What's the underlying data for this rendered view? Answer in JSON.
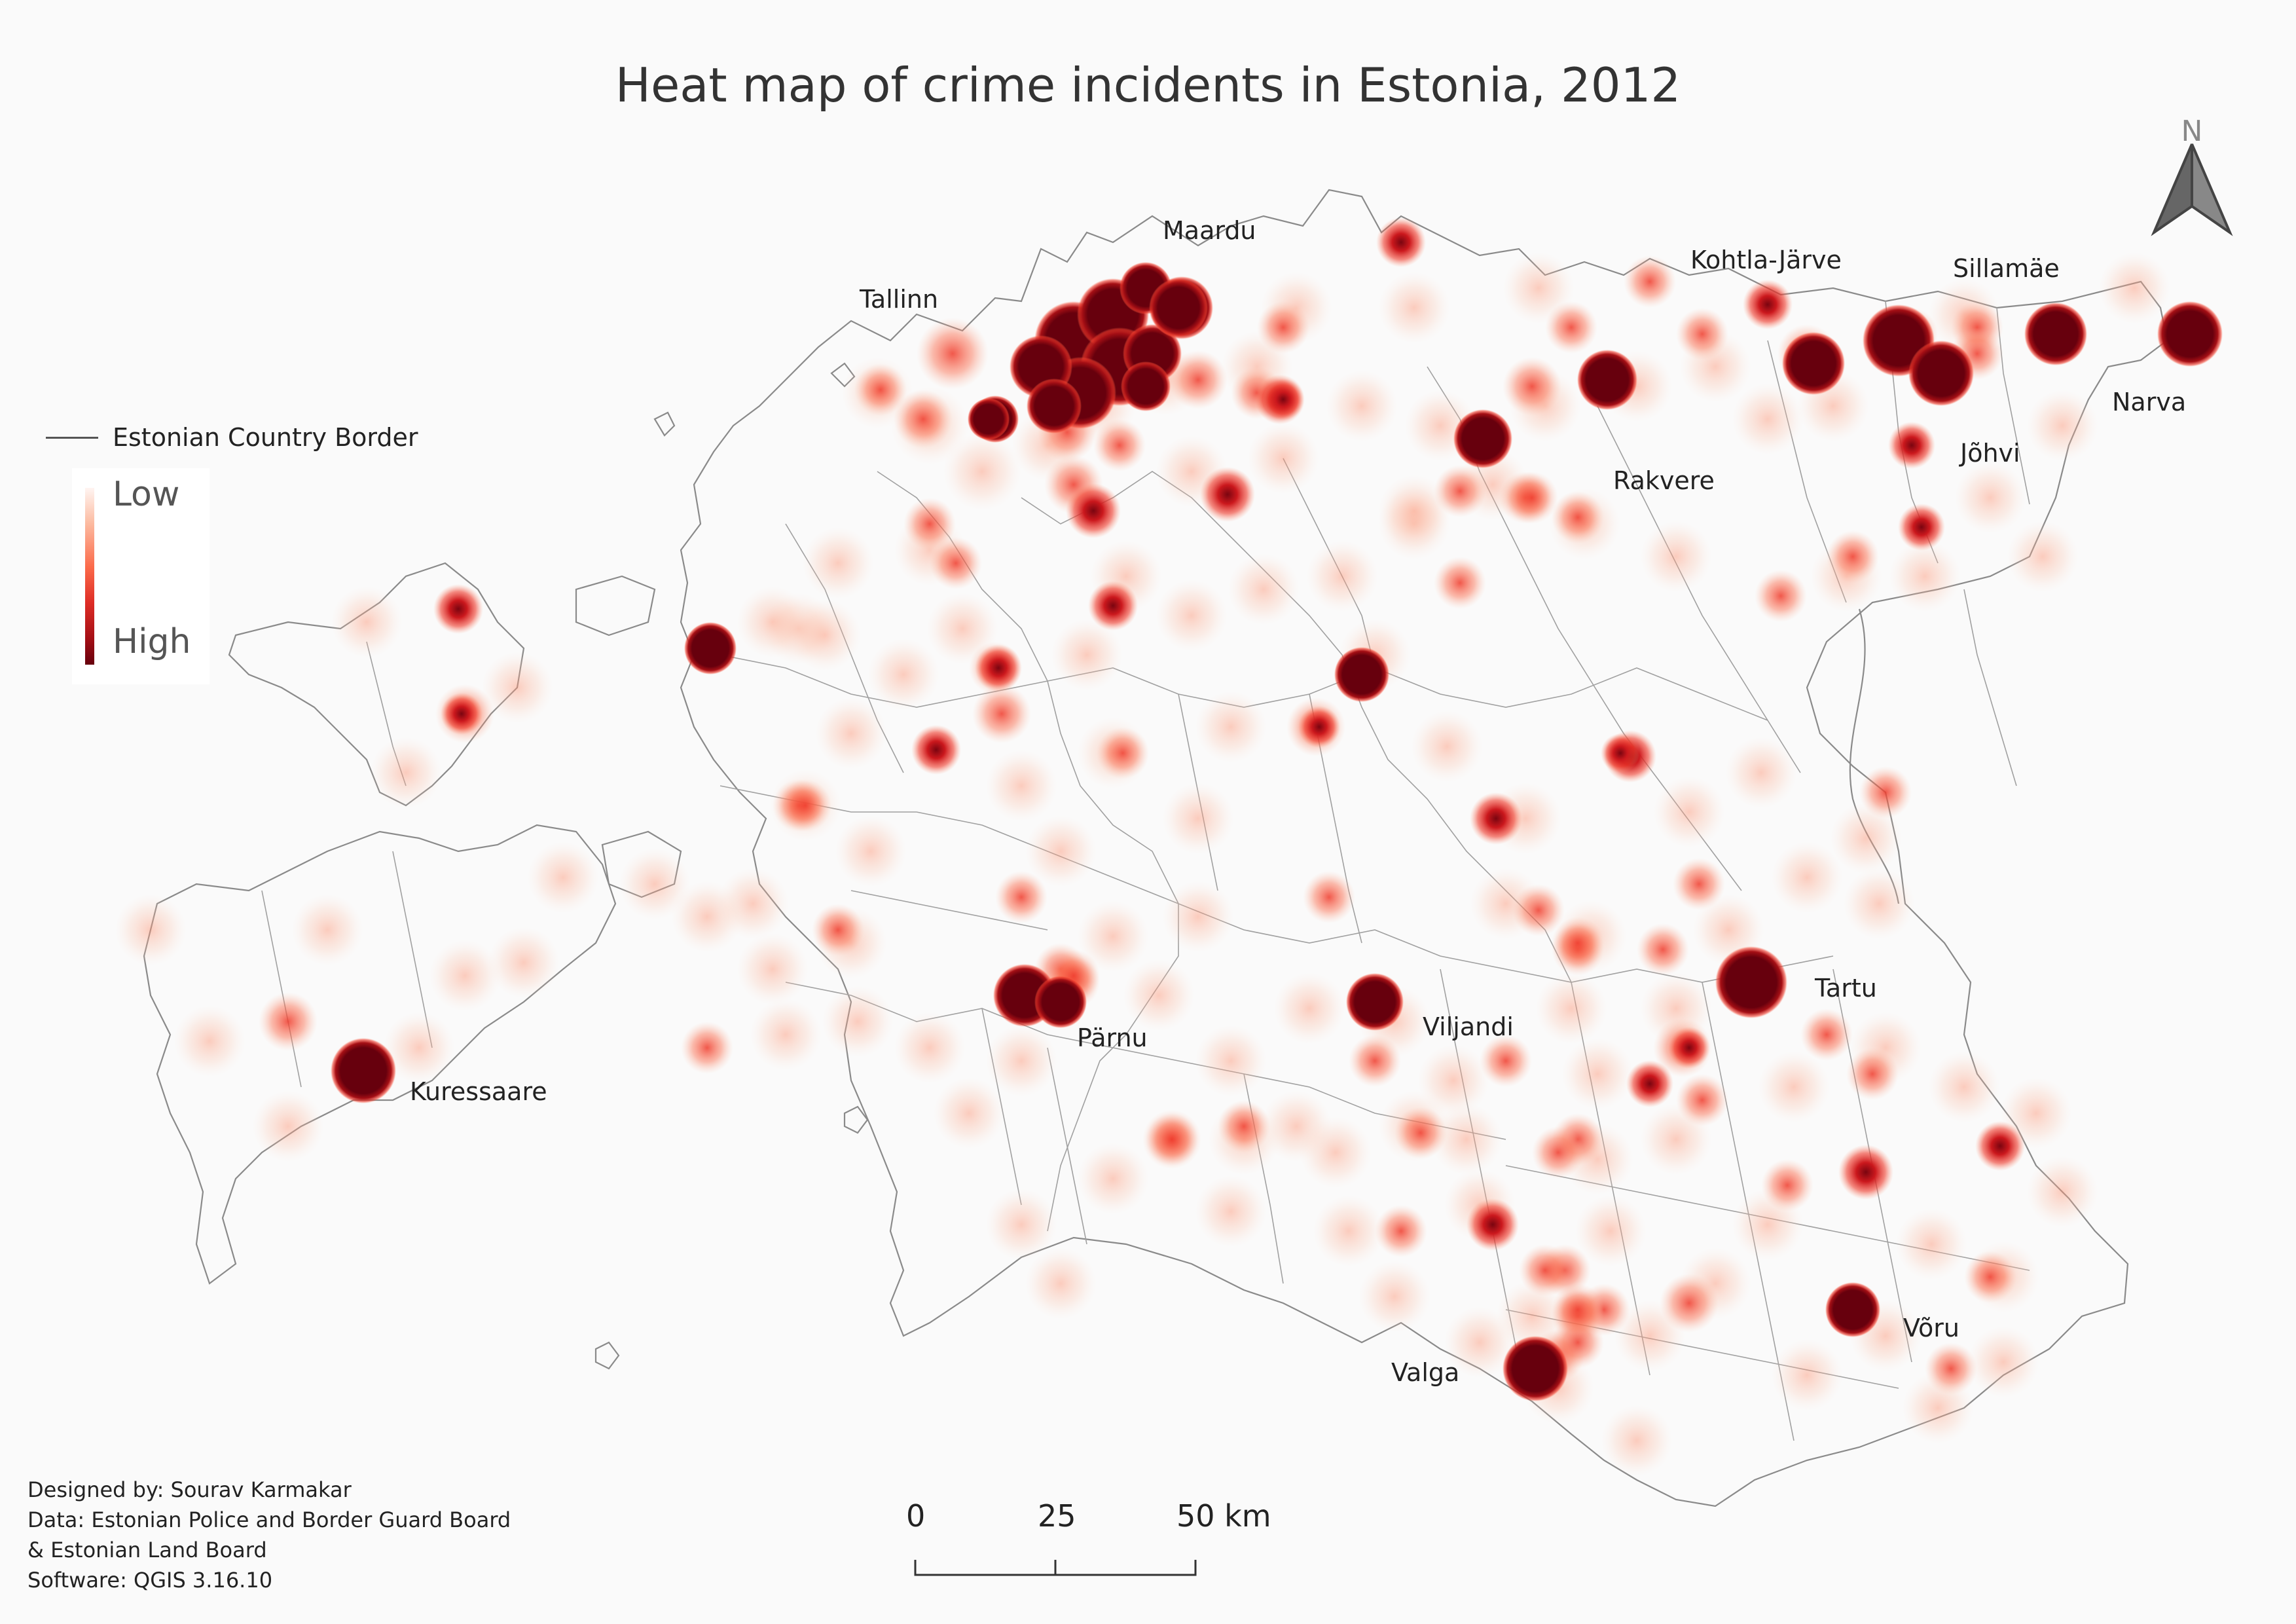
{
  "title": "Heat map of crime incidents in Estonia, 2012",
  "legend": {
    "border_label": "Estonian Country Border",
    "low_label": "Low",
    "high_label": "High",
    "ramp_colors": [
      "#fff5f2",
      "#fcbba1",
      "#fb6a4a",
      "#de2d26",
      "#a50f15",
      "#67000d"
    ]
  },
  "cities": {
    "tallinn": "Tallinn",
    "maardu": "Maardu",
    "kohtla_jarve": "Kohtla-Järve",
    "sillamae": "Sillamäe",
    "narva": "Narva",
    "johvi": "Jõhvi",
    "rakvere": "Rakvere",
    "tartu": "Tartu",
    "viljandi": "Viljandi",
    "parnu": "Pärnu",
    "kuressaare": "Kuressaare",
    "valga": "Valga",
    "voru": "Võru"
  },
  "scale_bar": {
    "label_0": "0",
    "label_25": "25",
    "label_50": "50 km"
  },
  "north_arrow": {
    "letter": "N"
  },
  "credits": {
    "designer": "Designed by: Sourav Karmakar",
    "data_line1": "Data: Estonian Police and Border Guard Board",
    "data_line2": "& Estonian Land Board",
    "software": "Software: QGIS 3.16.10"
  },
  "colors": {
    "background": "#fafafa",
    "high": "#67000d",
    "low": "#fff5f2",
    "border": "#555555"
  }
}
